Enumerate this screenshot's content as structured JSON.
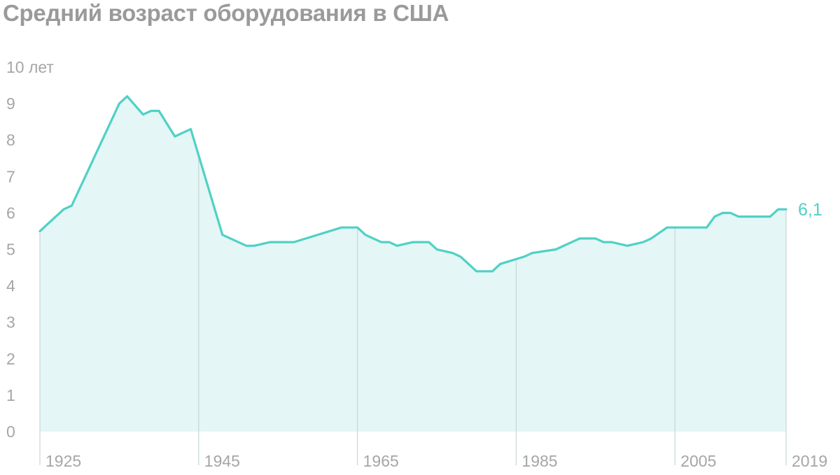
{
  "title": "Средний возраст оборудования в США",
  "colors": {
    "line": "#4fd1c5",
    "area": "#e4f6f5",
    "title": "#9a9a9a",
    "tick": "#a6a6a6",
    "vline": "#c8d6d5"
  },
  "chart_data": {
    "type": "area",
    "title": "Средний возраст оборудования в США",
    "xlabel": "",
    "ylabel": "",
    "y_unit_label": "10 лет",
    "ylim": [
      0,
      10
    ],
    "xlim": [
      1925,
      2019
    ],
    "y_ticks": [
      0,
      1,
      2,
      3,
      4,
      5,
      6,
      7,
      8,
      9,
      10
    ],
    "y_tick_labels": [
      "0",
      "1",
      "2",
      "3",
      "4",
      "5",
      "6",
      "7",
      "8",
      "9",
      "10 лет"
    ],
    "x_ticks": [
      1925,
      1945,
      1965,
      1985,
      2005,
      2019
    ],
    "x_tick_labels": [
      "1925",
      "1945",
      "1965",
      "1985",
      "2005",
      "2019"
    ],
    "grid": false,
    "end_label": "6,1",
    "series": [
      {
        "x": [
          1925,
          1928,
          1929,
          1935,
          1936,
          1938,
          1939,
          1940,
          1942,
          1943,
          1944,
          1948,
          1951,
          1952,
          1954,
          1957,
          1963,
          1965,
          1966,
          1968,
          1969,
          1970,
          1972,
          1974,
          1975,
          1977,
          1978,
          1980,
          1981,
          1982,
          1983,
          1986,
          1987,
          1990,
          1992,
          1993,
          1995,
          1996,
          1997,
          1999,
          2001,
          2002,
          2004,
          2005,
          2009,
          2010,
          2011,
          2012,
          2013,
          2017,
          2018,
          2019
        ],
        "y": [
          5.5,
          6.1,
          6.2,
          9.0,
          9.2,
          8.7,
          8.8,
          8.8,
          8.1,
          8.2,
          8.3,
          5.4,
          5.1,
          5.1,
          5.2,
          5.2,
          5.6,
          5.6,
          5.4,
          5.2,
          5.2,
          5.1,
          5.2,
          5.2,
          5.0,
          4.9,
          4.8,
          4.4,
          4.4,
          4.4,
          4.6,
          4.8,
          4.9,
          5.0,
          5.2,
          5.3,
          5.3,
          5.2,
          5.2,
          5.1,
          5.2,
          5.3,
          5.6,
          5.6,
          5.6,
          5.9,
          6.0,
          6.0,
          5.9,
          5.9,
          6.1,
          6.1
        ]
      }
    ]
  }
}
